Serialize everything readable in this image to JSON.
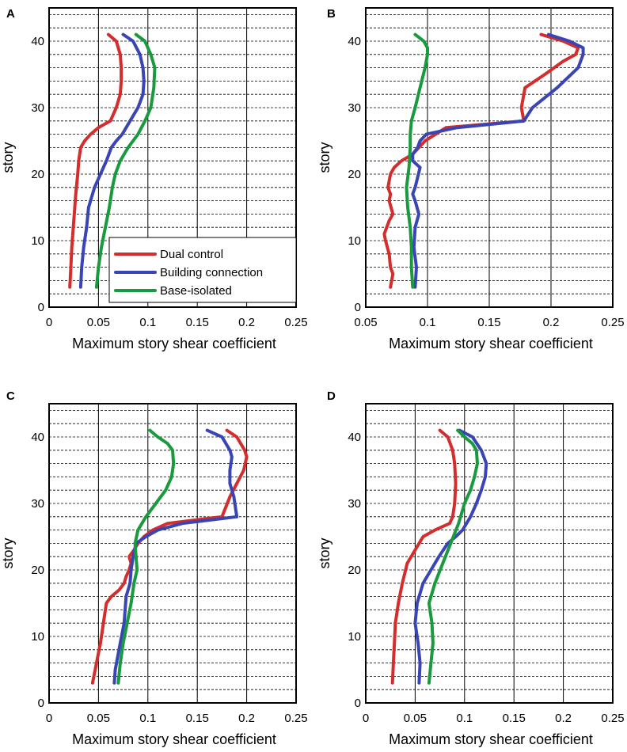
{
  "figure": {
    "panels": [
      "A",
      "B",
      "C",
      "D"
    ]
  },
  "legend": {
    "items": [
      {
        "label": "Dual control",
        "color": "#d42d2d"
      },
      {
        "label": "Building connection",
        "color": "#3a45b5"
      },
      {
        "label": "Base-isolated",
        "color": "#1a9a3e"
      }
    ]
  },
  "chart_data": [
    {
      "panel": "A",
      "type": "line",
      "xlabel": "Maximum story shear coefficient",
      "ylabel": "story",
      "xlim": [
        0,
        0.25
      ],
      "ylim": [
        0,
        45
      ],
      "xticks": [
        "0",
        "0.05",
        "0.1",
        "0.15",
        "0.2",
        "0.25"
      ],
      "yticks": [
        "0",
        "10",
        "20",
        "30",
        "40"
      ],
      "grid": "vertical solid at x ticks, horizontal dashed at every 2 stories",
      "legend_placement": "lower-right inside",
      "series": [
        {
          "name": "Dual control",
          "color": "#d42d2d",
          "x": [
            0.021,
            0.022,
            0.023,
            0.025,
            0.027,
            0.029,
            0.03,
            0.032,
            0.036,
            0.042,
            0.05,
            0.062,
            0.068,
            0.072,
            0.073,
            0.073,
            0.072,
            0.068,
            0.06
          ],
          "y": [
            3,
            6,
            9,
            13,
            17,
            20,
            22,
            24,
            25,
            26,
            27,
            28,
            30,
            32,
            34,
            36,
            38,
            40,
            41
          ]
        },
        {
          "name": "Building connection",
          "color": "#3a45b5",
          "x": [
            0.032,
            0.033,
            0.035,
            0.038,
            0.04,
            0.046,
            0.052,
            0.058,
            0.063,
            0.068,
            0.074,
            0.082,
            0.09,
            0.095,
            0.096,
            0.095,
            0.092,
            0.085,
            0.075
          ],
          "y": [
            3,
            6,
            9,
            12,
            15,
            18,
            20,
            22,
            24,
            25,
            26,
            28,
            30,
            32,
            34,
            36,
            38,
            40,
            41
          ]
        },
        {
          "name": "Base-isolated",
          "color": "#1a9a3e",
          "x": [
            0.048,
            0.05,
            0.053,
            0.057,
            0.061,
            0.064,
            0.067,
            0.072,
            0.08,
            0.09,
            0.097,
            0.103,
            0.106,
            0.107,
            0.103,
            0.097,
            0.088
          ],
          "y": [
            3,
            6,
            9,
            12,
            15,
            18,
            20,
            22,
            24,
            26,
            28,
            30,
            33,
            36,
            38,
            40,
            41
          ]
        }
      ]
    },
    {
      "panel": "B",
      "type": "line",
      "xlabel": "Maximum story shear coefficient",
      "ylabel": "story",
      "xlim": [
        0.05,
        0.25
      ],
      "ylim": [
        0,
        45
      ],
      "xticks": [
        "0.05",
        "0.1",
        "0.15",
        "0.2",
        "0.25"
      ],
      "yticks": [
        "0",
        "10",
        "20",
        "30",
        "40"
      ],
      "grid": "vertical solid at x ticks, horizontal dashed at every 2 stories",
      "series": [
        {
          "name": "Dual control",
          "color": "#d42d2d",
          "x": [
            0.07,
            0.072,
            0.07,
            0.069,
            0.066,
            0.065,
            0.067,
            0.069,
            0.072,
            0.069,
            0.07,
            0.068,
            0.07,
            0.073,
            0.079,
            0.088,
            0.098,
            0.115,
            0.178,
            0.176,
            0.179,
            0.195,
            0.21,
            0.22,
            0.222,
            0.21,
            0.192
          ],
          "y": [
            3,
            5,
            6,
            8,
            10,
            11,
            12,
            13,
            14,
            16,
            17,
            18,
            20,
            21,
            22,
            23,
            25,
            27,
            28,
            30,
            33,
            35,
            37,
            38,
            39,
            40,
            41
          ]
        },
        {
          "name": "Building connection",
          "color": "#3a45b5",
          "x": [
            0.09,
            0.091,
            0.089,
            0.09,
            0.093,
            0.09,
            0.088,
            0.09,
            0.094,
            0.088,
            0.088,
            0.092,
            0.094,
            0.099,
            0.124,
            0.178,
            0.185,
            0.205,
            0.222,
            0.226,
            0.226,
            0.215,
            0.198
          ],
          "y": [
            3,
            6,
            9,
            12,
            14,
            16,
            17,
            18,
            21,
            22,
            23,
            24,
            25,
            26,
            27,
            28,
            30,
            33,
            36,
            38,
            39,
            40,
            41
          ]
        },
        {
          "name": "Base-isolated",
          "color": "#1a9a3e",
          "x": [
            0.088,
            0.087,
            0.087,
            0.086,
            0.084,
            0.083,
            0.085,
            0.086,
            0.086,
            0.087,
            0.09,
            0.094,
            0.098,
            0.1,
            0.1,
            0.097,
            0.09
          ],
          "y": [
            3,
            6,
            9,
            12,
            15,
            18,
            21,
            24,
            26,
            28,
            30,
            33,
            36,
            38,
            39,
            40,
            41
          ]
        }
      ]
    },
    {
      "panel": "C",
      "type": "line",
      "xlabel": "Maximum story shear coefficient",
      "ylabel": "story",
      "xlim": [
        0,
        0.25
      ],
      "ylim": [
        0,
        45
      ],
      "xticks": [
        "0",
        "0.05",
        "0.1",
        "0.15",
        "0.2",
        "0.25"
      ],
      "yticks": [
        "0",
        "10",
        "20",
        "30",
        "40"
      ],
      "grid": "vertical solid at x ticks, horizontal dashed at every 2 stories",
      "series": [
        {
          "name": "Dual control",
          "color": "#d42d2d",
          "x": [
            0.044,
            0.048,
            0.052,
            0.055,
            0.058,
            0.063,
            0.071,
            0.076,
            0.078,
            0.081,
            0.083,
            0.081,
            0.086,
            0.09,
            0.096,
            0.105,
            0.12,
            0.175,
            0.183,
            0.19,
            0.197,
            0.2,
            0.198,
            0.19,
            0.18
          ],
          "y": [
            3,
            6,
            9,
            12,
            15,
            16,
            17,
            18,
            19,
            20,
            21,
            22,
            23,
            24,
            25,
            26,
            27,
            28,
            31,
            33,
            35,
            37,
            38,
            40,
            41
          ]
        },
        {
          "name": "Building connection",
          "color": "#3a45b5",
          "x": [
            0.066,
            0.067,
            0.072,
            0.076,
            0.078,
            0.082,
            0.083,
            0.085,
            0.088,
            0.098,
            0.11,
            0.135,
            0.19,
            0.187,
            0.183,
            0.183,
            0.185,
            0.183,
            0.175,
            0.16
          ],
          "y": [
            3,
            5,
            9,
            12,
            16,
            18,
            20,
            22,
            24,
            25,
            26,
            27,
            28,
            31,
            33,
            35,
            37,
            38,
            40,
            41
          ]
        },
        {
          "name": "Base-isolated",
          "color": "#1a9a3e",
          "x": [
            0.07,
            0.072,
            0.075,
            0.079,
            0.083,
            0.086,
            0.089,
            0.088,
            0.087,
            0.09,
            0.098,
            0.108,
            0.118,
            0.124,
            0.126,
            0.125,
            0.12,
            0.11,
            0.102
          ],
          "y": [
            3,
            6,
            9,
            12,
            15,
            18,
            20,
            22,
            24,
            26,
            28,
            30,
            32,
            34,
            36,
            38,
            39,
            40,
            41
          ]
        }
      ]
    },
    {
      "panel": "D",
      "type": "line",
      "xlabel": "Maximum story shear coefficient",
      "ylabel": "story",
      "xlim": [
        0,
        0.25
      ],
      "ylim": [
        0,
        45
      ],
      "xticks": [
        "0",
        "0.05",
        "0.1",
        "0.15",
        "0.2",
        "0.25"
      ],
      "yticks": [
        "0",
        "10",
        "20",
        "30",
        "40"
      ],
      "grid": "vertical solid at x ticks, horizontal dashed at every 2 stories",
      "series": [
        {
          "name": "Dual control",
          "color": "#d42d2d",
          "x": [
            0.027,
            0.028,
            0.029,
            0.03,
            0.033,
            0.037,
            0.042,
            0.05,
            0.058,
            0.07,
            0.085,
            0.088,
            0.09,
            0.091,
            0.09,
            0.088,
            0.083,
            0.075
          ],
          "y": [
            3,
            6,
            9,
            12,
            15,
            18,
            21,
            23,
            25,
            26,
            27,
            28,
            30,
            33,
            36,
            38,
            40,
            41
          ]
        },
        {
          "name": "Building connection",
          "color": "#3a45b5",
          "x": [
            0.054,
            0.055,
            0.053,
            0.05,
            0.052,
            0.058,
            0.066,
            0.074,
            0.083,
            0.091,
            0.098,
            0.106,
            0.112,
            0.117,
            0.121,
            0.122,
            0.117,
            0.108,
            0.095
          ],
          "y": [
            3,
            6,
            9,
            12,
            15,
            18,
            20,
            22,
            24,
            25,
            26,
            28,
            30,
            32,
            34,
            36,
            38,
            40,
            41
          ]
        },
        {
          "name": "Base-isolated",
          "color": "#1a9a3e",
          "x": [
            0.064,
            0.066,
            0.068,
            0.067,
            0.064,
            0.07,
            0.078,
            0.086,
            0.094,
            0.1,
            0.106,
            0.11,
            0.113,
            0.112,
            0.108,
            0.1,
            0.093
          ],
          "y": [
            3,
            6,
            9,
            12,
            15,
            18,
            21,
            24,
            27,
            30,
            32,
            34,
            36,
            38,
            39,
            40,
            41
          ]
        }
      ]
    }
  ]
}
